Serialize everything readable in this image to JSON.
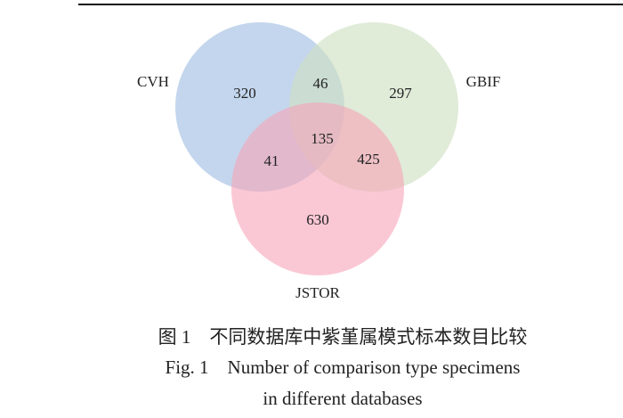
{
  "sets": [
    {
      "label": "CVH"
    },
    {
      "label": "GBIF"
    },
    {
      "label": "JSTOR"
    }
  ],
  "regions": [
    320,
    46,
    297,
    135,
    41,
    425,
    630
  ],
  "caption": [
    "图 1　不同数据库中紫堇属模式标本数目比较",
    "Fig. 1　Number of comparison type specimens",
    "in different databases"
  ]
}
